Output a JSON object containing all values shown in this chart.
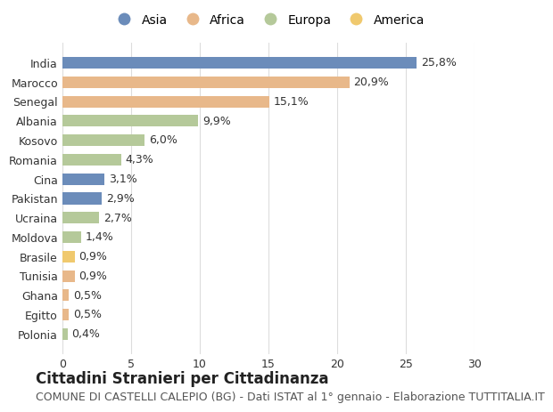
{
  "countries": [
    "India",
    "Marocco",
    "Senegal",
    "Albania",
    "Kosovo",
    "Romania",
    "Cina",
    "Pakistan",
    "Ucraina",
    "Moldova",
    "Brasile",
    "Tunisia",
    "Ghana",
    "Egitto",
    "Polonia"
  ],
  "values": [
    25.8,
    20.9,
    15.1,
    9.9,
    6.0,
    4.3,
    3.1,
    2.9,
    2.7,
    1.4,
    0.9,
    0.9,
    0.5,
    0.5,
    0.4
  ],
  "labels": [
    "25,8%",
    "20,9%",
    "15,1%",
    "9,9%",
    "6,0%",
    "4,3%",
    "3,1%",
    "2,9%",
    "2,7%",
    "1,4%",
    "0,9%",
    "0,9%",
    "0,5%",
    "0,5%",
    "0,4%"
  ],
  "continents": [
    "Asia",
    "Africa",
    "Africa",
    "Europa",
    "Europa",
    "Europa",
    "Asia",
    "Asia",
    "Europa",
    "Europa",
    "America",
    "Africa",
    "Africa",
    "Africa",
    "Europa"
  ],
  "continent_colors": {
    "Asia": "#6b8cba",
    "Africa": "#e8b88a",
    "Europa": "#b5c99a",
    "America": "#f0c96e"
  },
  "legend_order": [
    "Asia",
    "Africa",
    "Europa",
    "America"
  ],
  "title": "Cittadini Stranieri per Cittadinanza",
  "subtitle": "COMUNE DI CASTELLI CALEPIO (BG) - Dati ISTAT al 1° gennaio - Elaborazione TUTTITALIA.IT",
  "xlim": [
    0,
    30
  ],
  "xticks": [
    0,
    5,
    10,
    15,
    20,
    25,
    30
  ],
  "bg_color": "#ffffff",
  "grid_color": "#dddddd",
  "bar_height": 0.6,
  "label_fontsize": 9,
  "title_fontsize": 12,
  "subtitle_fontsize": 9,
  "tick_fontsize": 9,
  "legend_fontsize": 10
}
